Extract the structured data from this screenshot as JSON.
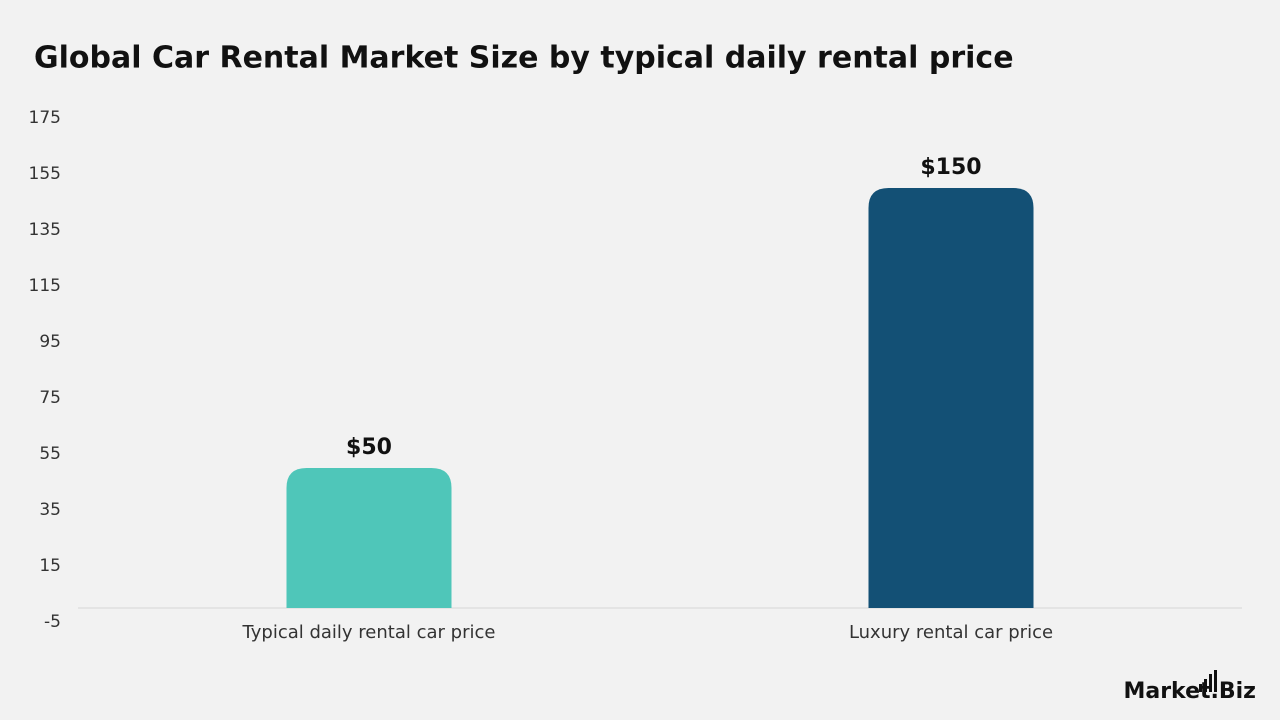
{
  "chart_data": {
    "type": "bar",
    "title": "Global Car Rental Market Size by typical daily rental price",
    "categories": [
      "Typical daily rental car price",
      "Luxury rental car price"
    ],
    "values": [
      50,
      150
    ],
    "value_labels": [
      "$50",
      "$150"
    ],
    "colors": [
      "#4fc6b9",
      "#135075"
    ],
    "ylim": [
      -5,
      175
    ],
    "yticks": [
      -5,
      15,
      35,
      55,
      75,
      95,
      115,
      135,
      155,
      175
    ],
    "grid": false
  },
  "logo": "Market.Biz"
}
